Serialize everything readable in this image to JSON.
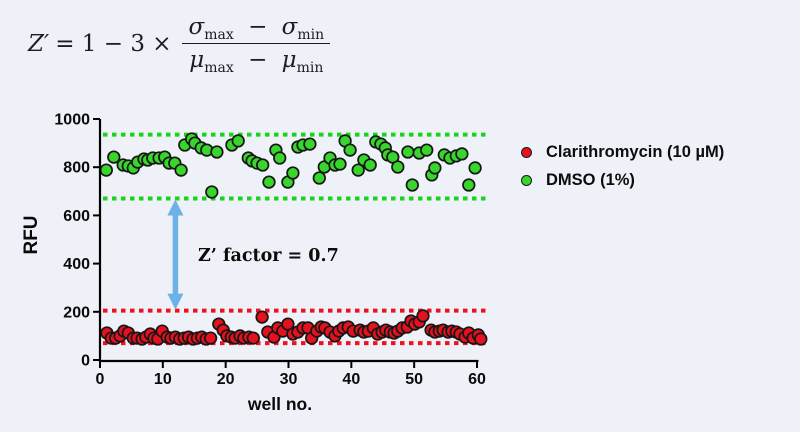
{
  "page": {
    "background": "#eef1f7"
  },
  "formula": {
    "z": "Z′",
    "eq": "= 1 − 3 ×",
    "sigma": "σ",
    "mu": "μ",
    "sub_max": "max",
    "sub_min": "min",
    "minus": "−"
  },
  "chart_data": {
    "type": "scatter",
    "xlabel": "well no.",
    "ylabel": "RFU",
    "xlim": [
      0,
      60
    ],
    "ylim": [
      0,
      1000
    ],
    "x_ticks": [
      0,
      10,
      20,
      30,
      40,
      50,
      60
    ],
    "y_ticks": [
      0,
      200,
      400,
      600,
      800,
      1000
    ],
    "grid": false,
    "legend_position": "right",
    "series": [
      {
        "name": "Clarithromycin (10 µM)",
        "marker_color": "#e6111f",
        "points": [
          [
            1.1,
            112
          ],
          [
            1.8,
            91
          ],
          [
            2.5,
            91
          ],
          [
            3.2,
            100
          ],
          [
            3.8,
            120
          ],
          [
            4.5,
            112
          ],
          [
            5.3,
            91
          ],
          [
            5.9,
            91
          ],
          [
            6.7,
            87
          ],
          [
            7.3,
            95
          ],
          [
            8,
            108
          ],
          [
            8.6,
            91
          ],
          [
            9.2,
            87
          ],
          [
            9.9,
            120
          ],
          [
            10.7,
            95
          ],
          [
            11.3,
            91
          ],
          [
            12,
            95
          ],
          [
            12.7,
            87
          ],
          [
            13.4,
            91
          ],
          [
            14.1,
            95
          ],
          [
            14.8,
            87
          ],
          [
            15.5,
            91
          ],
          [
            16.2,
            95
          ],
          [
            16.9,
            87
          ],
          [
            17.6,
            91
          ],
          [
            18.9,
            149
          ],
          [
            19.6,
            124
          ],
          [
            20.2,
            100
          ],
          [
            20.9,
            95
          ],
          [
            21.5,
            91
          ],
          [
            22.3,
            100
          ],
          [
            22.9,
            91
          ],
          [
            23.7,
            95
          ],
          [
            24.4,
            91
          ],
          [
            25.8,
            178
          ],
          [
            26.7,
            116
          ],
          [
            27.7,
            95
          ],
          [
            28.3,
            133
          ],
          [
            29.1,
            120
          ],
          [
            29.9,
            149
          ],
          [
            30.7,
            108
          ],
          [
            31.5,
            116
          ],
          [
            32.3,
            133
          ],
          [
            33.1,
            133
          ],
          [
            33.7,
            91
          ],
          [
            34.5,
            120
          ],
          [
            35.2,
            137
          ],
          [
            35.8,
            133
          ],
          [
            36.6,
            116
          ],
          [
            37.4,
            100
          ],
          [
            38,
            120
          ],
          [
            38.7,
            133
          ],
          [
            39.5,
            137
          ],
          [
            40.3,
            120
          ],
          [
            41.4,
            124
          ],
          [
            42,
            116
          ],
          [
            42.7,
            120
          ],
          [
            43.5,
            133
          ],
          [
            44.2,
            108
          ],
          [
            44.9,
            116
          ],
          [
            45.5,
            124
          ],
          [
            46.2,
            116
          ],
          [
            46.8,
            112
          ],
          [
            47.4,
            120
          ],
          [
            48.1,
            133
          ],
          [
            48.9,
            137
          ],
          [
            49.5,
            162
          ],
          [
            50.1,
            149
          ],
          [
            50.8,
            158
          ],
          [
            51.4,
            183
          ],
          [
            52.7,
            124
          ],
          [
            53.3,
            116
          ],
          [
            54,
            120
          ],
          [
            54.6,
            124
          ],
          [
            55.4,
            116
          ],
          [
            56,
            120
          ],
          [
            56.7,
            116
          ],
          [
            57.3,
            108
          ],
          [
            58.1,
            95
          ],
          [
            58.7,
            112
          ],
          [
            59.4,
            91
          ],
          [
            60.2,
            104
          ],
          [
            60.6,
            87
          ]
        ]
      },
      {
        "name": "DMSO (1%)",
        "marker_color": "#38d62c",
        "points": [
          [
            1,
            788
          ],
          [
            2.2,
            842
          ],
          [
            3.7,
            809
          ],
          [
            4.5,
            805
          ],
          [
            5.3,
            797
          ],
          [
            6,
            821
          ],
          [
            7,
            834
          ],
          [
            7.6,
            830
          ],
          [
            8.4,
            838
          ],
          [
            9.4,
            838
          ],
          [
            10.3,
            842
          ],
          [
            11,
            817
          ],
          [
            11.9,
            817
          ],
          [
            12.9,
            788
          ],
          [
            13.5,
            892
          ],
          [
            14.6,
            917
          ],
          [
            15.1,
            900
          ],
          [
            16.1,
            880
          ],
          [
            17,
            871
          ],
          [
            17.8,
            697
          ],
          [
            18.6,
            863
          ],
          [
            21,
            892
          ],
          [
            22,
            909
          ],
          [
            23.6,
            838
          ],
          [
            24.2,
            826
          ],
          [
            25,
            817
          ],
          [
            25.9,
            809
          ],
          [
            26.9,
            738
          ],
          [
            28,
            871
          ],
          [
            28.6,
            838
          ],
          [
            29.9,
            738
          ],
          [
            30.7,
            776
          ],
          [
            31.5,
            884
          ],
          [
            32.3,
            892
          ],
          [
            33.4,
            896
          ],
          [
            34.9,
            755
          ],
          [
            35.7,
            801
          ],
          [
            36.6,
            838
          ],
          [
            37.4,
            809
          ],
          [
            38.2,
            813
          ],
          [
            39,
            909
          ],
          [
            39.8,
            871
          ],
          [
            41.1,
            788
          ],
          [
            42,
            830
          ],
          [
            43,
            809
          ],
          [
            43.9,
            905
          ],
          [
            44.7,
            896
          ],
          [
            45.4,
            880
          ],
          [
            45.8,
            851
          ],
          [
            46.6,
            842
          ],
          [
            47.4,
            801
          ],
          [
            49,
            863
          ],
          [
            49.7,
            726
          ],
          [
            50.8,
            859
          ],
          [
            52,
            871
          ],
          [
            52.8,
            768
          ],
          [
            53.3,
            797
          ],
          [
            54.8,
            851
          ],
          [
            55.7,
            838
          ],
          [
            56.7,
            847
          ],
          [
            57.6,
            855
          ],
          [
            58.7,
            726
          ],
          [
            59.7,
            797
          ]
        ]
      }
    ],
    "threshold_lines": [
      {
        "rfu": 935,
        "color": "#17d31d",
        "style": "dashed"
      },
      {
        "rfu": 670,
        "color": "#17d31d",
        "style": "dashed"
      },
      {
        "rfu": 205,
        "color": "#ef111f",
        "style": "dashed"
      },
      {
        "rfu": 70,
        "color": "#ef111f",
        "style": "dashed"
      }
    ],
    "annotation": {
      "label": "Z’ factor = 0.7",
      "arrow_x_well": 12,
      "arrow_from_rfu": 670,
      "arrow_to_rfu": 205,
      "arrow_color": "#6cb2e6"
    }
  }
}
